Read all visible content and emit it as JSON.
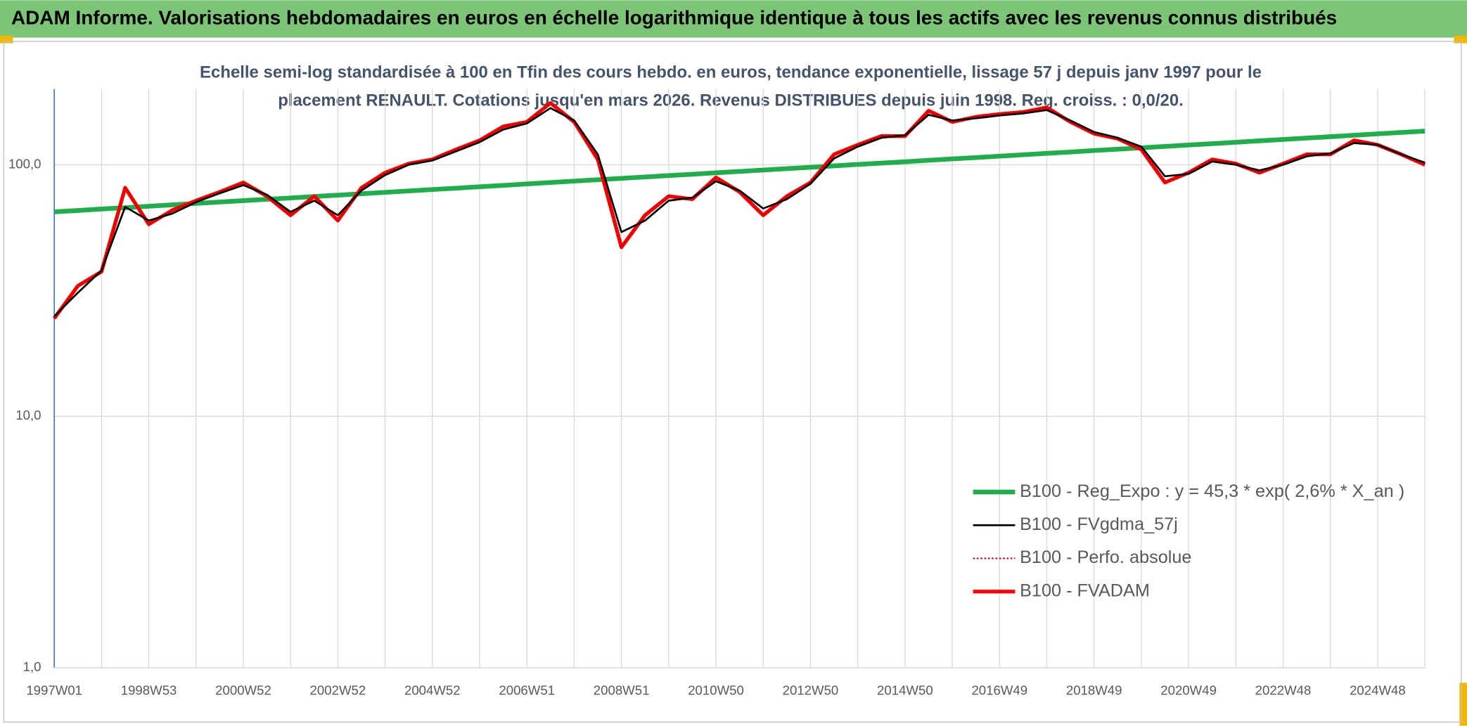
{
  "chart_data": {
    "type": "line",
    "title": "ADAM Informe. Valorisations hebdomadaires en euros en échelle logarithmique identique à tous les actifs avec les revenus connus distribués",
    "subtitle": [
      "Echelle semi-log standardisée à 100 en Tfin des cours hebdo. en euros, tendance exponentielle, lissage 57 j depuis janv 1997 pour le",
      "placement RENAULT. Cotations jusqu'en mars 2026. Revenus DISTRIBUES depuis juin 1998. Reg. croiss. : 0,0/20."
    ],
    "categories": [
      "1997W01",
      null,
      null,
      null,
      "1998W53",
      null,
      null,
      null,
      "2000W52",
      null,
      null,
      null,
      "2002W52",
      null,
      null,
      null,
      "2004W52",
      null,
      null,
      null,
      "2006W51",
      null,
      null,
      null,
      "2008W51",
      null,
      null,
      null,
      "2010W50",
      null,
      null,
      null,
      "2012W50",
      null,
      null,
      null,
      "2014W50",
      null,
      null,
      null,
      "2016W49",
      null,
      null,
      null,
      "2018W49",
      null,
      null,
      null,
      "2020W49",
      null,
      null,
      null,
      "2022W48",
      null,
      null,
      null,
      "2024W48",
      null,
      null
    ],
    "series": [
      {
        "name": "B100 - Reg_Expo : y = 45,3 * exp( 2,6% *  X_an )",
        "color": "#1fae4b",
        "width": 5,
        "dash": null,
        "values": [
          65.0,
          65.8,
          66.7,
          67.5,
          68.4,
          69.3,
          70.2,
          71.1,
          72.0,
          72.9,
          73.8,
          74.8,
          75.7,
          76.7,
          77.7,
          78.7,
          79.7,
          80.7,
          81.8,
          82.8,
          83.9,
          85.0,
          86.1,
          87.2,
          88.3,
          89.4,
          90.6,
          91.7,
          92.9,
          94.1,
          95.3,
          96.5,
          97.7,
          99.0,
          100.3,
          101.5,
          102.8,
          104.2,
          105.5,
          106.8,
          108.2,
          109.6,
          111.0,
          112.4,
          113.9,
          115.3,
          116.8,
          118.3,
          119.8,
          121.3,
          122.9,
          124.5,
          126.1,
          127.7,
          129.3,
          131.0,
          132.7,
          134.4,
          136.1
        ]
      },
      {
        "name": "B100 - FVgdma_57j",
        "color": "#000000",
        "width": 2,
        "dash": null,
        "values": [
          25,
          31,
          38,
          68,
          60,
          64,
          71,
          77,
          83,
          76,
          65,
          72,
          63,
          79,
          91,
          100,
          104,
          113,
          123,
          138,
          146,
          168,
          150,
          110,
          54,
          60,
          72,
          74,
          86,
          79,
          67,
          73,
          84,
          106,
          118,
          128,
          131,
          158,
          150,
          153,
          157,
          160,
          165,
          150,
          135,
          128,
          118,
          90,
          92,
          103,
          100,
          95,
          100,
          108,
          111,
          122,
          120,
          110,
          102
        ]
      },
      {
        "name": "B100 - Perfo. absolue",
        "color": "#c00000",
        "width": 1.5,
        "dash": "2 2",
        "values": [
          24.5,
          33,
          37.6,
          81,
          58,
          66,
          72,
          78,
          85,
          75,
          63,
          75,
          60,
          81,
          93,
          101,
          105,
          115,
          125,
          142,
          148,
          176,
          148,
          105,
          47,
          63,
          75,
          73,
          89,
          78,
          63,
          75,
          85,
          110,
          120,
          130,
          130,
          164,
          148,
          155,
          159,
          162,
          169,
          148,
          133,
          127,
          115,
          85,
          93,
          105,
          101,
          93,
          101,
          110,
          110,
          125,
          120,
          110,
          100
        ]
      },
      {
        "name": "B100 - FVADAM",
        "color": "#ff0000",
        "width": 4,
        "dash": null,
        "values": [
          24.5,
          33,
          37.6,
          81,
          58,
          66,
          72,
          78,
          85,
          75,
          63,
          75,
          60,
          81,
          93,
          101,
          105,
          115,
          125,
          142,
          148,
          176,
          148,
          105,
          47,
          63,
          75,
          73,
          89,
          78,
          63,
          75,
          85,
          110,
          120,
          130,
          130,
          164,
          148,
          155,
          159,
          162,
          169,
          148,
          133,
          127,
          115,
          85,
          93,
          105,
          101,
          93,
          101,
          110,
          110,
          125,
          120,
          110,
          100
        ]
      }
    ],
    "ylim": [
      1,
      200
    ],
    "yticks": [
      {
        "value": 1,
        "label": "1,0"
      },
      {
        "value": 10,
        "label": "10,0"
      },
      {
        "value": 100,
        "label": "100,0"
      }
    ],
    "log_y": true,
    "grid": true,
    "legend": "lower right"
  }
}
